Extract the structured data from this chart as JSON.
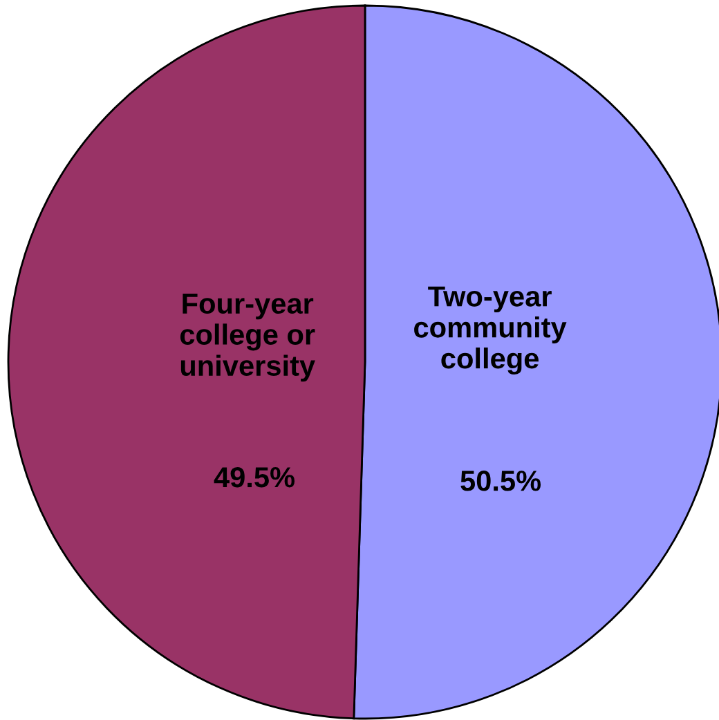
{
  "chart_data": {
    "type": "pie",
    "categories": [
      "Two-year\ncommunity\ncollege",
      "Four-year\ncollege or\nuniversity"
    ],
    "values": [
      50.5,
      49.5
    ],
    "colors": [
      "#9999ff",
      "#993366"
    ],
    "value_labels": [
      "50.5%",
      "49.5%"
    ]
  }
}
